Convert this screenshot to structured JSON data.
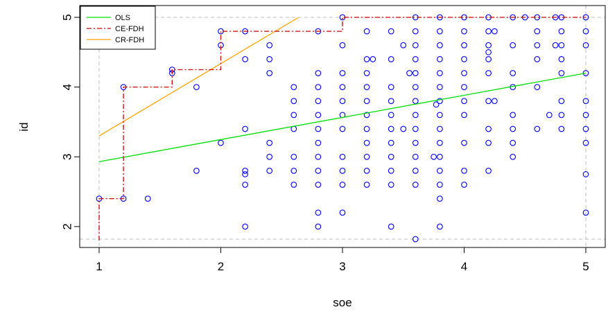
{
  "chart_data": {
    "type": "scatter",
    "title": "",
    "xlabel": "soe",
    "ylabel": "id",
    "xlim": [
      1,
      5
    ],
    "ylim": [
      1.8,
      5.0
    ],
    "xticks": [
      "1",
      "2",
      "3",
      "4",
      "5"
    ],
    "yticks": [
      "2",
      "3",
      "4",
      "5"
    ],
    "legend_position": "top-left",
    "legend": [
      {
        "label": "OLS",
        "color": "#00dd00",
        "style": "solid"
      },
      {
        "label": "CE-FDH",
        "color": "#cc0000",
        "style": "dashdot"
      },
      {
        "label": "CR-FDH",
        "color": "#ffa500",
        "style": "solid"
      }
    ],
    "point_color": "#0000ff",
    "ols_line": {
      "x": [
        1,
        5
      ],
      "y": [
        2.93,
        4.2
      ]
    },
    "cr_fdh_line": {
      "x": [
        1,
        2.64
      ],
      "y": [
        3.3,
        5.0
      ]
    },
    "ce_fdh_step": {
      "x": [
        1,
        1,
        1.2,
        1.2,
        1.6,
        1.6,
        2.0,
        2.0,
        3.0,
        3.0,
        5.0
      ],
      "y": [
        1.8,
        2.4,
        2.4,
        4.0,
        4.0,
        4.25,
        4.25,
        4.8,
        4.8,
        5.0,
        5.0
      ]
    },
    "reference_lines": {
      "x": [
        1,
        5
      ],
      "y": [
        1.82,
        5.0
      ]
    },
    "points": [
      [
        1,
        2.4
      ],
      [
        1.2,
        2.4
      ],
      [
        1.2,
        4
      ],
      [
        1.4,
        2.4
      ],
      [
        1.6,
        4.25
      ],
      [
        1.6,
        4.2
      ],
      [
        1.8,
        4
      ],
      [
        1.8,
        2.8
      ],
      [
        2,
        4.8
      ],
      [
        2,
        4.6
      ],
      [
        2,
        3.2
      ],
      [
        2.2,
        4.8
      ],
      [
        2.2,
        4.4
      ],
      [
        2.2,
        3.4
      ],
      [
        2.2,
        2.8
      ],
      [
        2.2,
        2.75
      ],
      [
        2.2,
        2.6
      ],
      [
        2.2,
        2
      ],
      [
        2.4,
        4.6
      ],
      [
        2.4,
        4.4
      ],
      [
        2.4,
        4.2
      ],
      [
        2.4,
        3.2
      ],
      [
        2.4,
        3
      ],
      [
        2.4,
        2.8
      ],
      [
        2.6,
        4
      ],
      [
        2.6,
        3.8
      ],
      [
        2.6,
        3.6
      ],
      [
        2.6,
        3.4
      ],
      [
        2.6,
        3
      ],
      [
        2.6,
        2.8
      ],
      [
        2.6,
        2.6
      ],
      [
        2.8,
        4.8
      ],
      [
        2.8,
        4.2
      ],
      [
        2.8,
        4
      ],
      [
        2.8,
        3.8
      ],
      [
        2.8,
        3.6
      ],
      [
        2.8,
        3.4
      ],
      [
        2.8,
        3.2
      ],
      [
        2.8,
        3
      ],
      [
        2.8,
        2.8
      ],
      [
        2.8,
        2.6
      ],
      [
        2.8,
        2.2
      ],
      [
        2.8,
        2
      ],
      [
        3,
        5
      ],
      [
        3,
        4.6
      ],
      [
        3,
        4.2
      ],
      [
        3,
        4
      ],
      [
        3,
        3.8
      ],
      [
        3,
        3.6
      ],
      [
        3,
        3.4
      ],
      [
        3,
        3
      ],
      [
        3,
        2.8
      ],
      [
        3,
        2.6
      ],
      [
        3,
        2.2
      ],
      [
        3.2,
        4.8
      ],
      [
        3.2,
        4.4
      ],
      [
        3.2,
        4.2
      ],
      [
        3.2,
        4
      ],
      [
        3.2,
        3.8
      ],
      [
        3.2,
        3.6
      ],
      [
        3.2,
        3.4
      ],
      [
        3.2,
        3.2
      ],
      [
        3.2,
        3
      ],
      [
        3.2,
        2.8
      ],
      [
        3.2,
        2.6
      ],
      [
        3.25,
        4.4
      ],
      [
        3.4,
        4.8
      ],
      [
        3.4,
        4.4
      ],
      [
        3.4,
        4
      ],
      [
        3.4,
        3.8
      ],
      [
        3.4,
        3.6
      ],
      [
        3.4,
        3.4
      ],
      [
        3.4,
        3.2
      ],
      [
        3.4,
        3
      ],
      [
        3.4,
        2.8
      ],
      [
        3.4,
        2.6
      ],
      [
        3.4,
        2
      ],
      [
        3.5,
        4.6
      ],
      [
        3.5,
        3.4
      ],
      [
        3.55,
        4.2
      ],
      [
        3.6,
        5
      ],
      [
        3.6,
        4.8
      ],
      [
        3.6,
        4.6
      ],
      [
        3.6,
        4.4
      ],
      [
        3.6,
        4.2
      ],
      [
        3.6,
        4
      ],
      [
        3.6,
        3.8
      ],
      [
        3.6,
        3.6
      ],
      [
        3.6,
        3.4
      ],
      [
        3.6,
        3.2
      ],
      [
        3.6,
        3
      ],
      [
        3.6,
        2.8
      ],
      [
        3.6,
        2.6
      ],
      [
        3.6,
        1.82
      ],
      [
        3.75,
        3
      ],
      [
        3.77,
        3.75
      ],
      [
        3.8,
        5
      ],
      [
        3.8,
        4.8
      ],
      [
        3.8,
        4.6
      ],
      [
        3.8,
        4.4
      ],
      [
        3.8,
        4.2
      ],
      [
        3.8,
        4
      ],
      [
        3.8,
        3.8
      ],
      [
        3.8,
        3.6
      ],
      [
        3.8,
        3.4
      ],
      [
        3.8,
        3.2
      ],
      [
        3.8,
        3
      ],
      [
        3.8,
        2.8
      ],
      [
        3.8,
        2.6
      ],
      [
        3.8,
        2.4
      ],
      [
        3.8,
        2
      ],
      [
        4,
        5
      ],
      [
        4,
        4.8
      ],
      [
        4,
        4.6
      ],
      [
        4,
        4.4
      ],
      [
        4,
        4.2
      ],
      [
        4,
        4
      ],
      [
        4,
        3.8
      ],
      [
        4,
        3.6
      ],
      [
        4,
        3.2
      ],
      [
        4,
        2.8
      ],
      [
        4,
        2.6
      ],
      [
        4.2,
        5
      ],
      [
        4.2,
        4.8
      ],
      [
        4.2,
        4.6
      ],
      [
        4.2,
        4.5
      ],
      [
        4.2,
        4.4
      ],
      [
        4.2,
        4.2
      ],
      [
        4.2,
        3.8
      ],
      [
        4.2,
        3.4
      ],
      [
        4.2,
        3.2
      ],
      [
        4.2,
        2.8
      ],
      [
        4.25,
        4.8
      ],
      [
        4.25,
        3.8
      ],
      [
        4.4,
        5
      ],
      [
        4.4,
        4.6
      ],
      [
        4.4,
        4.2
      ],
      [
        4.4,
        4
      ],
      [
        4.4,
        3.6
      ],
      [
        4.4,
        3.4
      ],
      [
        4.4,
        3.2
      ],
      [
        4.4,
        3
      ],
      [
        4.5,
        5
      ],
      [
        4.6,
        5
      ],
      [
        4.6,
        4.8
      ],
      [
        4.6,
        4.6
      ],
      [
        4.6,
        4.4
      ],
      [
        4.6,
        4
      ],
      [
        4.6,
        3.4
      ],
      [
        4.7,
        3.6
      ],
      [
        4.75,
        5
      ],
      [
        4.75,
        4.6
      ],
      [
        4.8,
        5
      ],
      [
        4.8,
        4.8
      ],
      [
        4.8,
        4.6
      ],
      [
        4.8,
        4.4
      ],
      [
        4.8,
        4.2
      ],
      [
        4.8,
        3.8
      ],
      [
        4.8,
        3.6
      ],
      [
        4.8,
        3.4
      ],
      [
        5,
        5
      ],
      [
        5,
        4.8
      ],
      [
        5,
        4.6
      ],
      [
        5,
        4.2
      ],
      [
        5,
        3.8
      ],
      [
        5,
        3.6
      ],
      [
        5,
        3.4
      ],
      [
        5,
        3.2
      ],
      [
        5,
        2.75
      ],
      [
        5,
        2.2
      ]
    ]
  }
}
